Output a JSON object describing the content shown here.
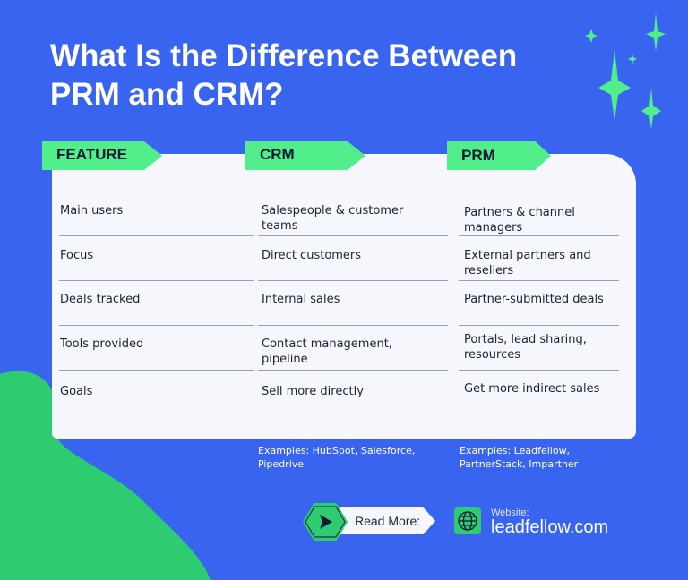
{
  "title": "What Is the Difference Between PRM and CRM?",
  "colors": {
    "background": "#3864F0",
    "accent": "#52EE8C",
    "card": "#F5F7FC"
  },
  "table": {
    "headers": [
      "FEATURE",
      "CRM",
      "PRM"
    ],
    "rows": [
      [
        "Main users",
        "Salespeople & customer teams",
        "Partners & channel managers"
      ],
      [
        "Focus",
        "Direct customers",
        "External partners and resellers"
      ],
      [
        "Deals tracked",
        "Internal sales",
        "Partner-submitted deals"
      ],
      [
        "Tools provided",
        "Contact management, pipeline",
        "Portals, lead sharing, resources"
      ],
      [
        "Goals",
        "Sell more directly",
        "Get more indirect sales"
      ]
    ]
  },
  "examples": {
    "crm": "Examples: HubSpot, Salesforce, Pipedrive",
    "prm": "Examples: Leadfellow, PartnerStack, Impartner"
  },
  "footer": {
    "read_more": "Read More:",
    "website_label": "Website:",
    "website": "leadfellow.com",
    "icons": [
      "play-arrow-icon",
      "globe-icon",
      "sparkle-icon"
    ]
  }
}
